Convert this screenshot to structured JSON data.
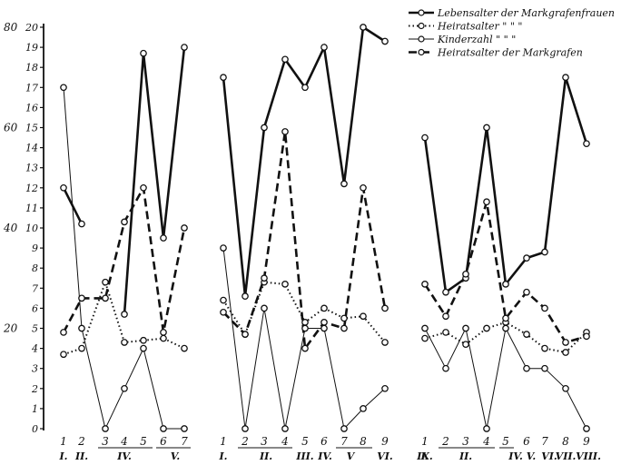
{
  "chart_data": {
    "type": "line",
    "left_axis_ticks": [
      "80",
      "60",
      "40",
      "20"
    ],
    "right_axis_ticks": [
      "0",
      "1",
      "2",
      "3",
      "4",
      "5",
      "6",
      "7",
      "8",
      "9",
      "10",
      "11",
      "12",
      "13",
      "14",
      "15",
      "16",
      "17",
      "18",
      "19",
      "20"
    ],
    "ylim": [
      0,
      20
    ],
    "grid": false,
    "legend_placement": "top-right",
    "legend": [
      {
        "label": "Lebensalter der Markgrafenfrauen",
        "style": "solid-thick",
        "color": "#111111"
      },
      {
        "label": "Heiratsalter  \"  \"  \"",
        "style": "dotted",
        "color": "#111111"
      },
      {
        "label": "Kinderzahl  \"  \"  \"",
        "style": "thin",
        "color": "#111111"
      },
      {
        "label": "Heiratsalter der Markgrafen",
        "style": "dashed",
        "color": "#111111"
      }
    ],
    "groups": [
      {
        "x_numbers": [
          "1",
          "2",
          "3",
          "4",
          "5",
          "6",
          "7"
        ],
        "roman_labels": [
          "I.",
          "II.",
          "IV.",
          "V."
        ],
        "series": {
          "lebensalter": [
            12,
            10.2,
            null,
            5.7,
            18.7,
            9.5,
            19
          ],
          "heiratsalter": [
            3.7,
            4,
            7.3,
            4.3,
            4.4,
            4.5,
            4
          ],
          "kinderzahl": [
            17,
            5,
            0,
            2,
            4,
            0,
            0
          ],
          "heiratsalter_markgrafen": [
            4.8,
            6.5,
            6.5,
            10.3,
            12,
            4.8,
            10
          ]
        }
      },
      {
        "x_numbers": [
          "1",
          "2",
          "3",
          "4",
          "5",
          "6",
          "7",
          "8",
          "9"
        ],
        "roman_labels": [
          "I.",
          "II.",
          "III.",
          "IV.",
          "V",
          "VI."
        ],
        "series": {
          "lebensalter": [
            17.5,
            6.6,
            15,
            18.4,
            17,
            19,
            12.2,
            20,
            19.3
          ],
          "heiratsalter": [
            6.4,
            4.7,
            7.3,
            7.2,
            5.3,
            6,
            5.5,
            5.6,
            4.3
          ],
          "kinderzahl": [
            9,
            0,
            6,
            0,
            5,
            5,
            0,
            1,
            2
          ],
          "heiratsalter_markgrafen": [
            5.8,
            4.7,
            7.5,
            14.8,
            4,
            5.3,
            5,
            12,
            6
          ]
        }
      },
      {
        "x_numbers": [
          "1",
          "2",
          "3",
          "4",
          "5",
          "6",
          "7",
          "8",
          "9"
        ],
        "roman_labels": [
          "I.",
          "II.",
          "IV.",
          "V.",
          "VI.",
          "VII.",
          "VIII.",
          "IX."
        ],
        "series": {
          "lebensalter": [
            14.5,
            6.8,
            7.5,
            15,
            7.2,
            8.5,
            8.8,
            17.5,
            14.2
          ],
          "heiratsalter": [
            4.5,
            4.8,
            4.2,
            5,
            5.3,
            4.7,
            4,
            3.8,
            4.8
          ],
          "kinderzahl": [
            5,
            3,
            5,
            0,
            5,
            3,
            3,
            2,
            0
          ],
          "heiratsalter_markgrafen": [
            7.2,
            5.6,
            7.7,
            11.3,
            5.5,
            6.8,
            6,
            4.3,
            4.6
          ]
        }
      }
    ]
  }
}
